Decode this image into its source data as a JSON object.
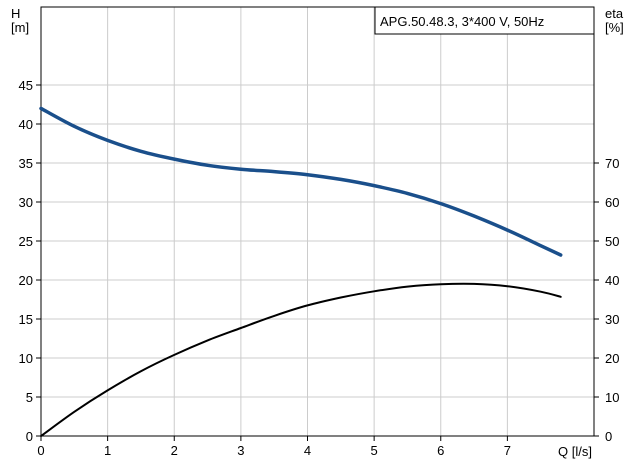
{
  "chart_data": {
    "type": "line",
    "title": "APG.50.48.3, 3*400 V, 50Hz",
    "xlabel": "Q [l/s]",
    "ylabel_top": "H",
    "ylabel_unit": "[m]",
    "y2label_top": "eta",
    "y2label_unit": "[%]",
    "xlim": [
      0,
      8.3
    ],
    "ylim": [
      0,
      55
    ],
    "y2lim": [
      0,
      110
    ],
    "x_ticks": [
      0,
      1,
      2,
      3,
      4,
      5,
      6,
      7
    ],
    "y_ticks": [
      0,
      5,
      10,
      15,
      20,
      25,
      30,
      35,
      40,
      45
    ],
    "y2_ticks": [
      0,
      10,
      20,
      30,
      40,
      50,
      60,
      70
    ],
    "grid": true,
    "series": [
      {
        "axis": "left",
        "color": "#1a4f8b",
        "x": [
          0,
          0.5,
          1,
          1.5,
          2,
          2.5,
          3,
          3.5,
          4,
          4.5,
          5,
          5.5,
          6,
          6.5,
          7,
          7.5,
          7.8
        ],
        "y": [
          42,
          39.7,
          37.9,
          36.5,
          35.5,
          34.7,
          34.2,
          33.9,
          33.5,
          32.9,
          32.1,
          31.1,
          29.8,
          28.2,
          26.4,
          24.4,
          23.2
        ]
      },
      {
        "axis": "right",
        "color": "#000000",
        "x": [
          0,
          0.5,
          1,
          1.5,
          2,
          2.5,
          3,
          3.5,
          4,
          4.5,
          5,
          5.5,
          6,
          6.5,
          7,
          7.5,
          7.8
        ],
        "y": [
          0,
          6.2,
          11.7,
          16.6,
          20.8,
          24.5,
          27.7,
          30.8,
          33.5,
          35.5,
          37.1,
          38.3,
          38.9,
          39.0,
          38.4,
          37.0,
          35.7
        ]
      }
    ]
  }
}
